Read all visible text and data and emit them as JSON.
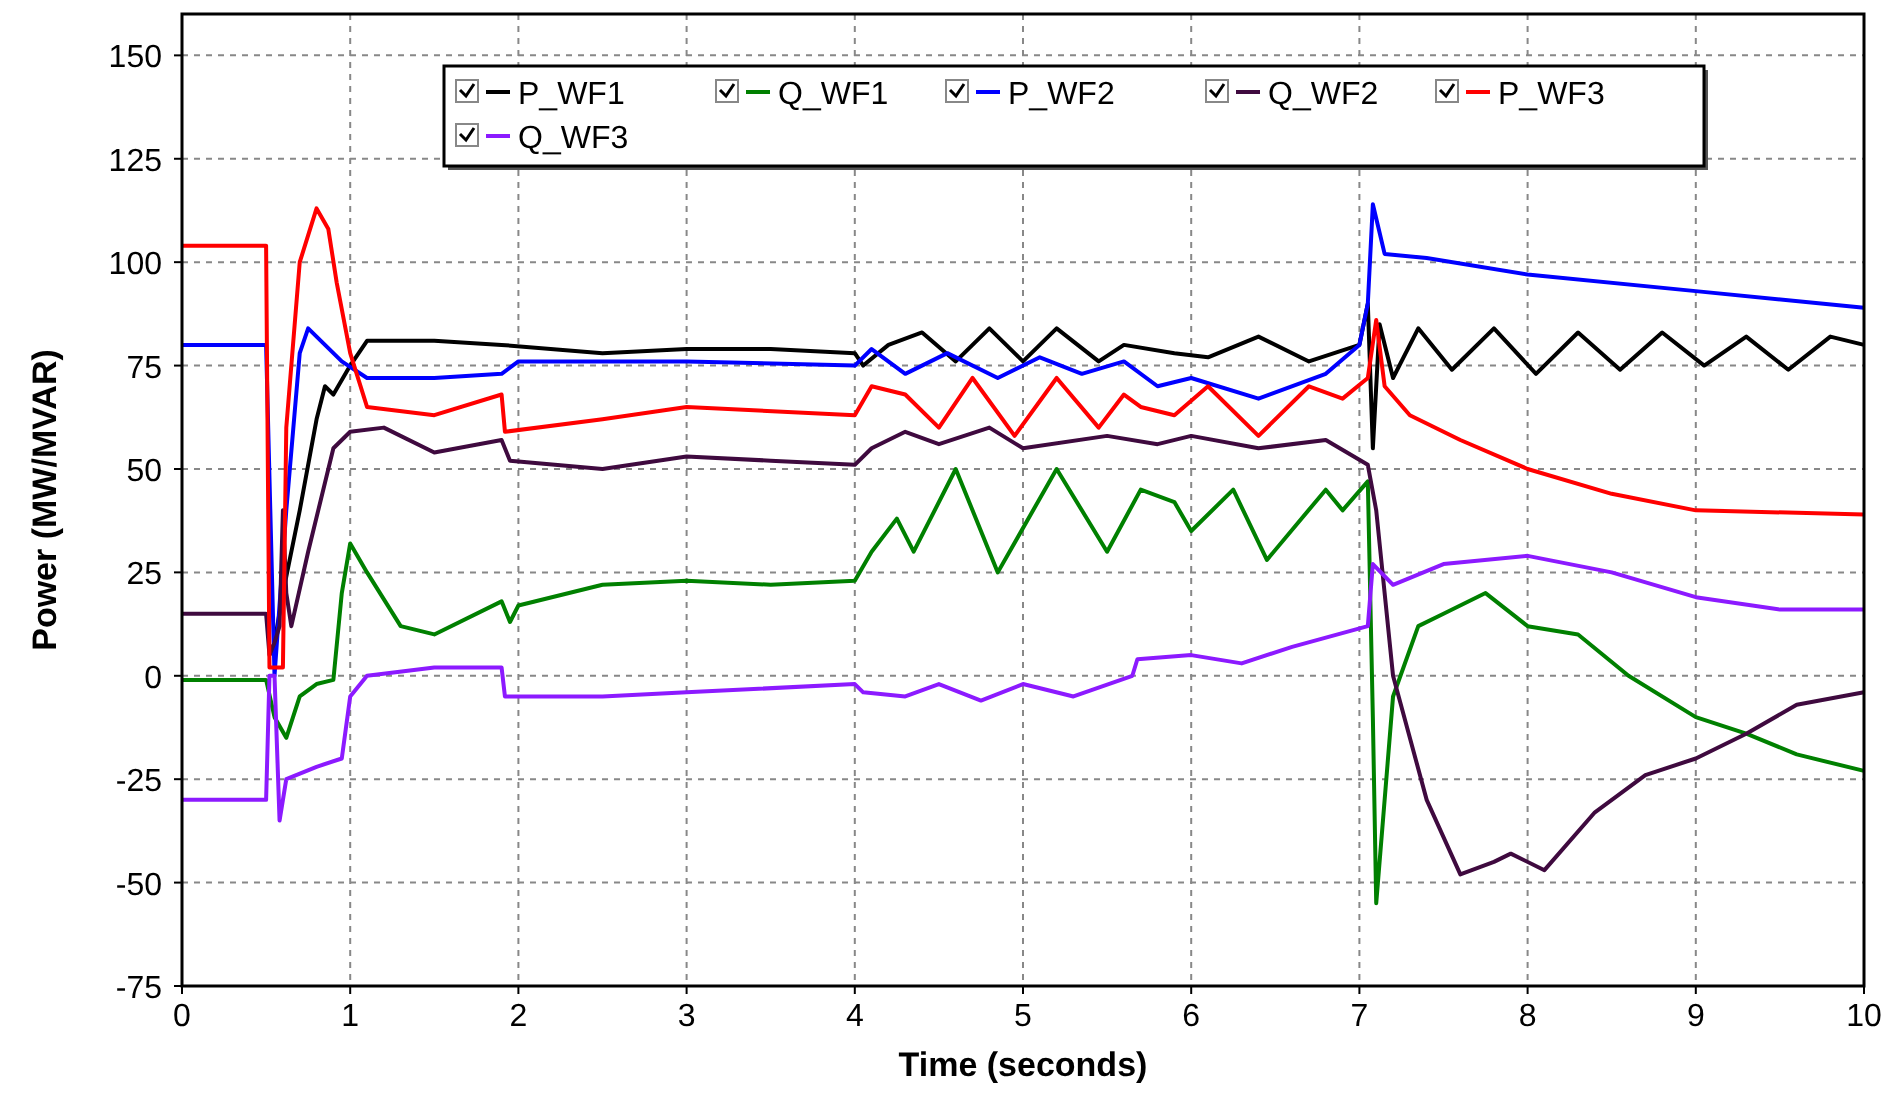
{
  "chart_data": {
    "type": "line",
    "xlabel": "Time (seconds)",
    "ylabel": "Power (MW/MVAR)",
    "xlim": [
      0,
      10
    ],
    "ylim": [
      -75,
      160
    ],
    "xticks": [
      0,
      1,
      2,
      3,
      4,
      5,
      6,
      7,
      8,
      9,
      10
    ],
    "yticks": [
      -75,
      -50,
      -25,
      0,
      25,
      50,
      75,
      100,
      125,
      150
    ],
    "grid": true,
    "legend": "top",
    "marker": "none",
    "line_style": "solid",
    "series": [
      {
        "name": "P_WF1",
        "color": "#000000",
        "x": [
          0.52,
          0.55,
          0.6,
          0.7,
          0.8,
          0.85,
          0.9,
          1.0,
          1.1,
          1.5,
          1.9,
          2.5,
          3,
          3.5,
          4,
          4.05,
          4.2,
          4.4,
          4.6,
          4.8,
          5,
          5.2,
          5.45,
          5.6,
          5.9,
          6.1,
          6.4,
          6.7,
          7,
          7.05,
          7.08,
          7.12,
          7.2,
          7.35,
          7.55,
          7.8,
          8.05,
          8.3,
          8.55,
          8.8,
          9.05,
          9.3,
          9.55,
          9.8,
          10
        ],
        "values": [
          5,
          8,
          20,
          40,
          62,
          70,
          68,
          75,
          81,
          81,
          80,
          78,
          79,
          79,
          78,
          75,
          80,
          83,
          76,
          84,
          76,
          84,
          76,
          80,
          78,
          77,
          82,
          76,
          80,
          90,
          55,
          85,
          72,
          84,
          74,
          84,
          73,
          83,
          74,
          83,
          75,
          82,
          74,
          82,
          80
        ]
      },
      {
        "name": "Q_WF1",
        "color": "#008000",
        "x": [
          0,
          0.5,
          0.55,
          0.62,
          0.7,
          0.8,
          0.9,
          0.95,
          1.0,
          1.1,
          1.3,
          1.5,
          1.9,
          1.95,
          2,
          2.5,
          3,
          3.5,
          4,
          4.1,
          4.25,
          4.35,
          4.6,
          4.85,
          5.2,
          5.5,
          5.7,
          5.9,
          6,
          6.25,
          6.45,
          6.8,
          6.9,
          7.05,
          7.08,
          7.1,
          7.2,
          7.35,
          7.5,
          7.75,
          8,
          8.3,
          8.6,
          9,
          9.3,
          9.6,
          10
        ],
        "values": [
          -1,
          -1,
          -10,
          -15,
          -5,
          -2,
          -1,
          20,
          32,
          25,
          12,
          10,
          18,
          13,
          17,
          22,
          23,
          22,
          23,
          30,
          38,
          30,
          50,
          25,
          50,
          30,
          45,
          42,
          35,
          45,
          28,
          45,
          40,
          47,
          -10,
          -55,
          -5,
          12,
          15,
          20,
          12,
          10,
          0,
          -10,
          -14,
          -19,
          -23
        ]
      },
      {
        "name": "P_WF2",
        "color": "#0000ff",
        "x": [
          0,
          0.5,
          0.55,
          0.62,
          0.7,
          0.75,
          0.85,
          0.95,
          1.1,
          1.5,
          1.9,
          2,
          3,
          4,
          4.1,
          4.3,
          4.55,
          4.85,
          5.1,
          5.35,
          5.6,
          5.8,
          6,
          6.4,
          6.8,
          7,
          7.05,
          7.08,
          7.15,
          7.4,
          8,
          9,
          10
        ],
        "values": [
          80,
          80,
          0,
          40,
          78,
          84,
          80,
          76,
          72,
          72,
          73,
          76,
          76,
          75,
          79,
          73,
          78,
          72,
          77,
          73,
          76,
          70,
          72,
          67,
          73,
          80,
          90,
          114,
          102,
          101,
          97,
          93,
          89
        ]
      },
      {
        "name": "Q_WF2",
        "color": "#3f0a3f",
        "x": [
          0,
          0.5,
          0.52,
          0.55,
          0.58,
          0.6,
          0.62,
          0.65,
          0.75,
          0.9,
          1,
          1.2,
          1.5,
          1.9,
          1.95,
          2.5,
          3,
          3.5,
          4,
          4.1,
          4.3,
          4.5,
          4.8,
          5,
          5.5,
          5.8,
          6,
          6.4,
          6.8,
          7.05,
          7.1,
          7.2,
          7.4,
          7.6,
          7.8,
          7.9,
          8.1,
          8.4,
          8.7,
          9,
          9.3,
          9.6,
          10
        ],
        "values": [
          15,
          15,
          5,
          8,
          12,
          40,
          20,
          12,
          30,
          55,
          59,
          60,
          54,
          57,
          52,
          50,
          53,
          52,
          51,
          55,
          59,
          56,
          60,
          55,
          58,
          56,
          58,
          55,
          57,
          51,
          40,
          0,
          -30,
          -48,
          -45,
          -43,
          -47,
          -33,
          -24,
          -20,
          -14,
          -7,
          -4
        ]
      },
      {
        "name": "P_WF3",
        "color": "#ff0000",
        "x": [
          0,
          0.5,
          0.52,
          0.6,
          0.62,
          0.7,
          0.8,
          0.87,
          0.92,
          1,
          1.1,
          1.5,
          1.9,
          1.92,
          2.5,
          3,
          4,
          4.1,
          4.3,
          4.5,
          4.7,
          4.95,
          5.2,
          5.45,
          5.6,
          5.7,
          5.9,
          6.1,
          6.4,
          6.7,
          6.9,
          7.05,
          7.1,
          7.15,
          7.3,
          7.6,
          8,
          8.5,
          9,
          10
        ],
        "values": [
          104,
          104,
          2,
          2,
          60,
          100,
          113,
          108,
          95,
          78,
          65,
          63,
          68,
          59,
          62,
          65,
          63,
          70,
          68,
          60,
          72,
          58,
          72,
          60,
          68,
          65,
          63,
          70,
          58,
          70,
          67,
          72,
          86,
          70,
          63,
          57,
          50,
          44,
          40,
          39
        ]
      },
      {
        "name": "Q_WF3",
        "color": "#8c1aff",
        "x": [
          0,
          0.5,
          0.52,
          0.55,
          0.58,
          0.62,
          0.8,
          0.95,
          1,
          1.1,
          1.5,
          1.9,
          1.92,
          2.5,
          3,
          4,
          4.05,
          4.3,
          4.5,
          4.75,
          5,
          5.3,
          5.65,
          5.68,
          6,
          6.3,
          6.6,
          7.05,
          7.08,
          7.2,
          7.5,
          8,
          8.5,
          9,
          9.5,
          10
        ],
        "values": [
          -30,
          -30,
          0,
          0,
          -35,
          -25,
          -22,
          -20,
          -5,
          0,
          2,
          2,
          -5,
          -5,
          -4,
          -2,
          -4,
          -5,
          -2,
          -6,
          -2,
          -5,
          0,
          4,
          5,
          3,
          7,
          12,
          27,
          22,
          27,
          29,
          25,
          19,
          16,
          16
        ]
      }
    ]
  }
}
